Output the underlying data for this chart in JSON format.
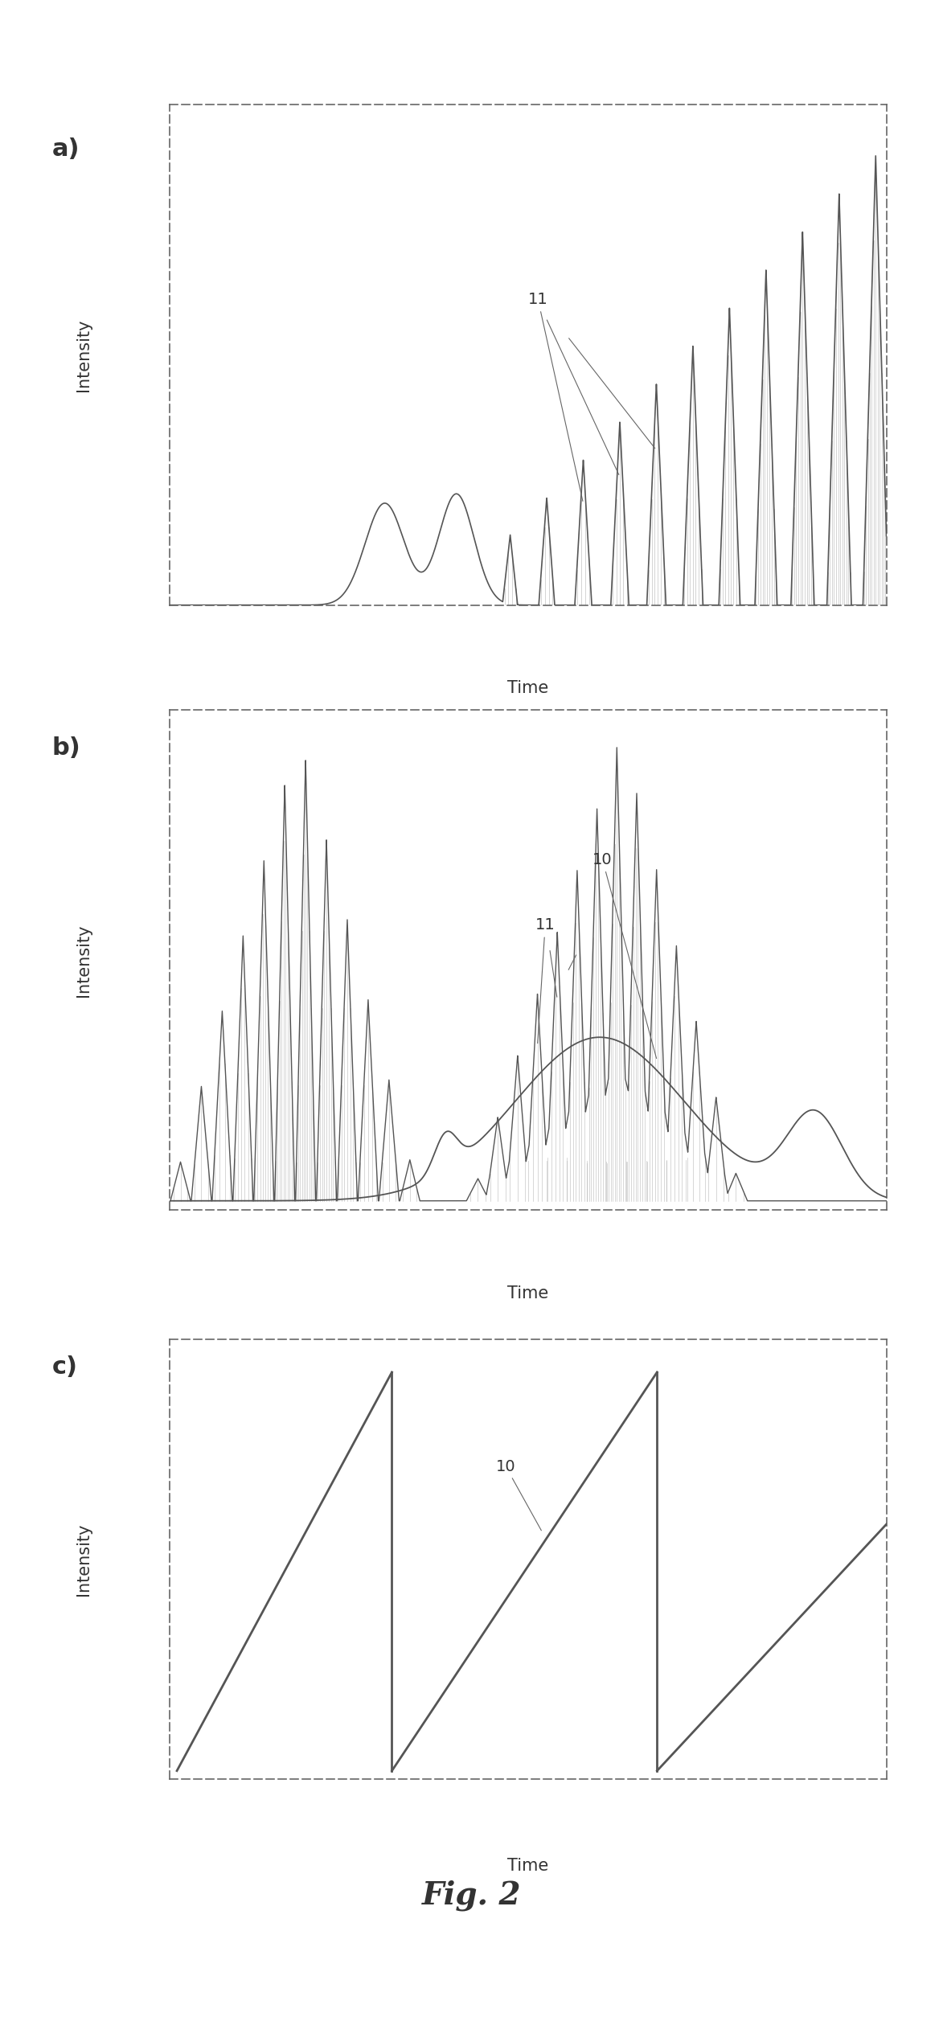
{
  "fig_title": "Fig. 2",
  "panel_labels": [
    "a)",
    "b)",
    "c)"
  ],
  "ylabel": "Intensity",
  "xlabel": "Time",
  "bg_color": "#ffffff",
  "line_color": "#555555",
  "hatch_color": "#aaaaaa",
  "border_color": "#888888",
  "annotation_color": "#555555"
}
